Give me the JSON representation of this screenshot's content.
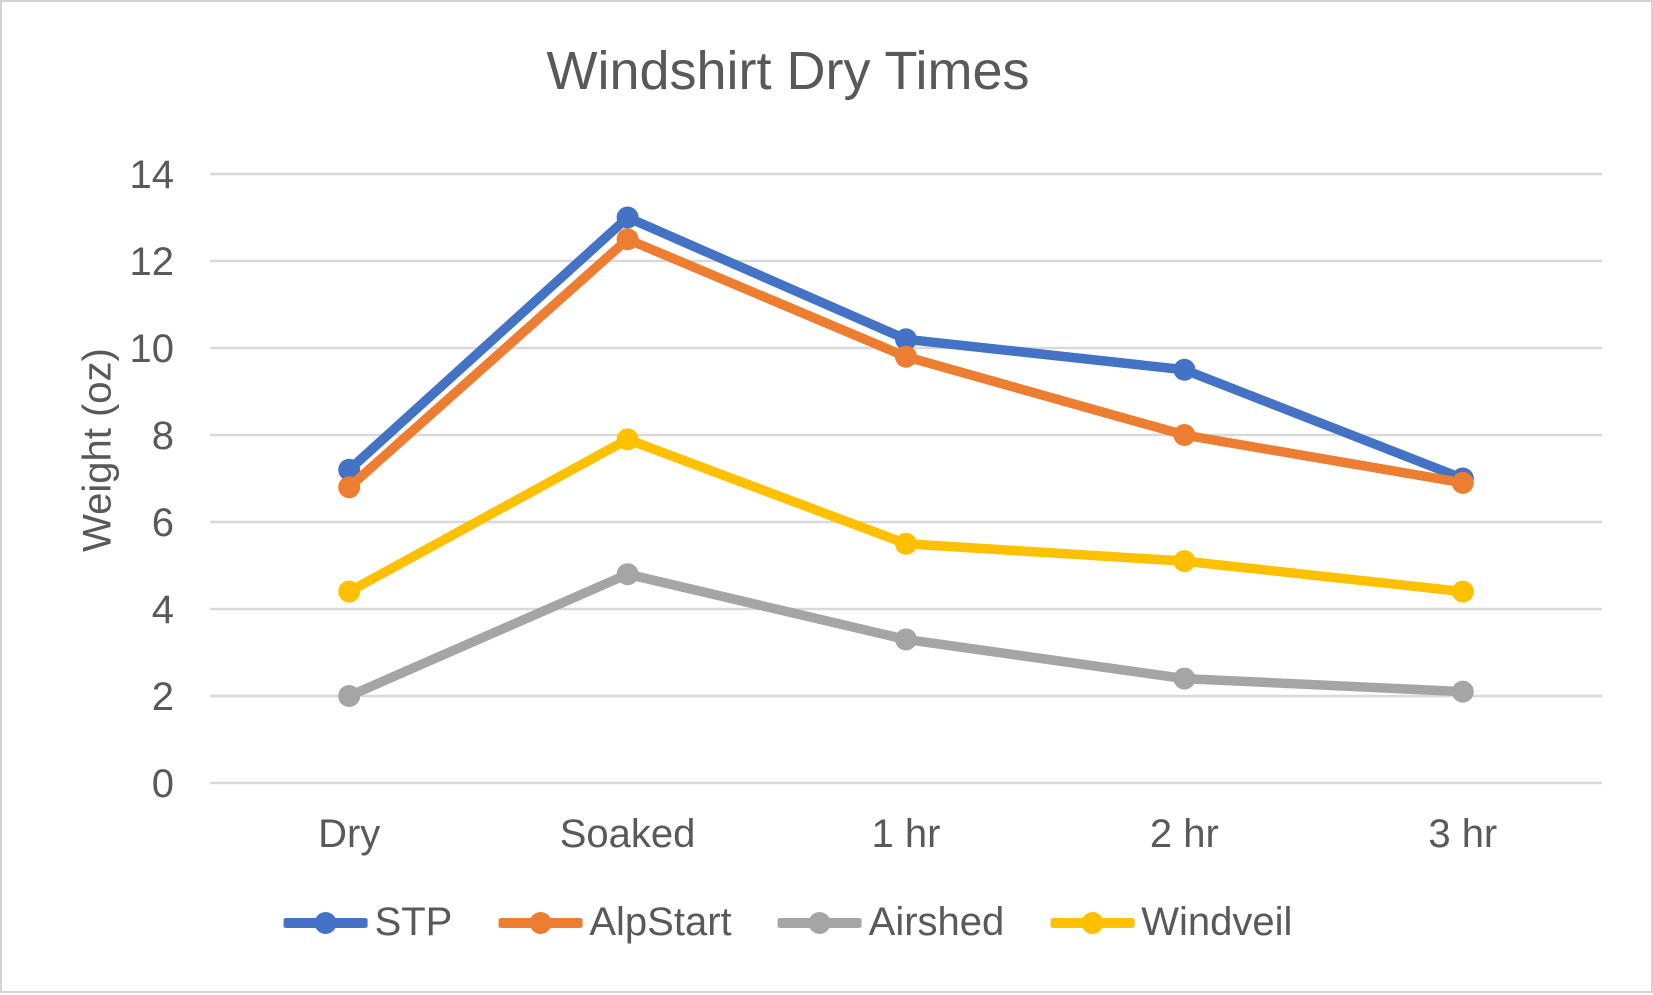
{
  "window": {
    "background": "#ffffff",
    "border_color": "#d5d2d2",
    "text_color": "#595959"
  },
  "chart_data": {
    "type": "line",
    "title": "Windshirt Dry Times",
    "xlabel": "",
    "ylabel": "Weight (oz)",
    "categories": [
      "Dry",
      "Soaked",
      "1 hr",
      "2 hr",
      "3 hr"
    ],
    "series": [
      {
        "name": "STP",
        "color": "#4472C4",
        "values": [
          7.2,
          13.0,
          10.2,
          9.5,
          7.0
        ]
      },
      {
        "name": "AlpStart",
        "color": "#ED7D31",
        "values": [
          6.8,
          12.5,
          9.8,
          8.0,
          6.9
        ]
      },
      {
        "name": "Airshed",
        "color": "#A5A5A5",
        "values": [
          2.0,
          4.8,
          3.3,
          2.4,
          2.1
        ]
      },
      {
        "name": "Windveil",
        "color": "#FFC000",
        "values": [
          4.4,
          7.9,
          5.5,
          5.1,
          4.4
        ]
      }
    ],
    "ylim": [
      0,
      14
    ],
    "y_ticks": [
      0,
      2,
      4,
      6,
      8,
      10,
      12,
      14
    ],
    "grid": true,
    "gridline_color": "#D9D9D9",
    "legend_position": "bottom",
    "legend_entries": [
      "STP",
      "AlpStart",
      "Airshed",
      "Windveil"
    ]
  }
}
